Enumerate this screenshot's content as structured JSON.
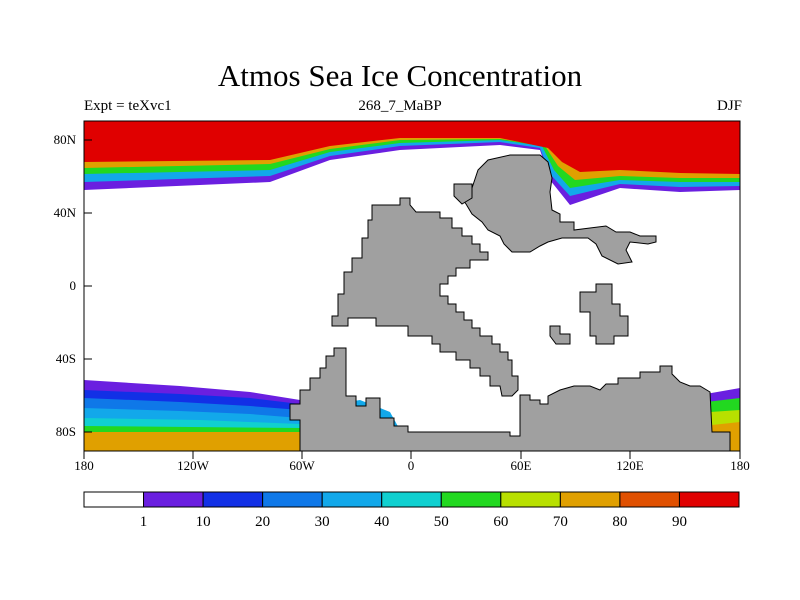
{
  "title": "Atmos Sea Ice Concentration",
  "subtitle_left": "Expt = teXvc1",
  "subtitle_center": "268_7_MaBP",
  "subtitle_right": "DJF",
  "longitude_ticks": [
    "180",
    "120W",
    "60W",
    "0",
    "60E",
    "120E",
    "180"
  ],
  "latitude_ticks": [
    "80N",
    "40N",
    "0",
    "40S",
    "80S"
  ],
  "colorbar": {
    "labels": [
      "1",
      "10",
      "20",
      "30",
      "40",
      "50",
      "60",
      "70",
      "80",
      "90"
    ],
    "colors": [
      "#ffffff",
      "#6a1fe0",
      "#1230e6",
      "#0f78e8",
      "#12a8ea",
      "#10d0d0",
      "#22d820",
      "#b8e000",
      "#e0a000",
      "#e05000",
      "#e00000"
    ]
  },
  "colors": {
    "land": "#a0a0a0",
    "ocean": "#ffffff",
    "ice_high": "#e00000"
  }
}
